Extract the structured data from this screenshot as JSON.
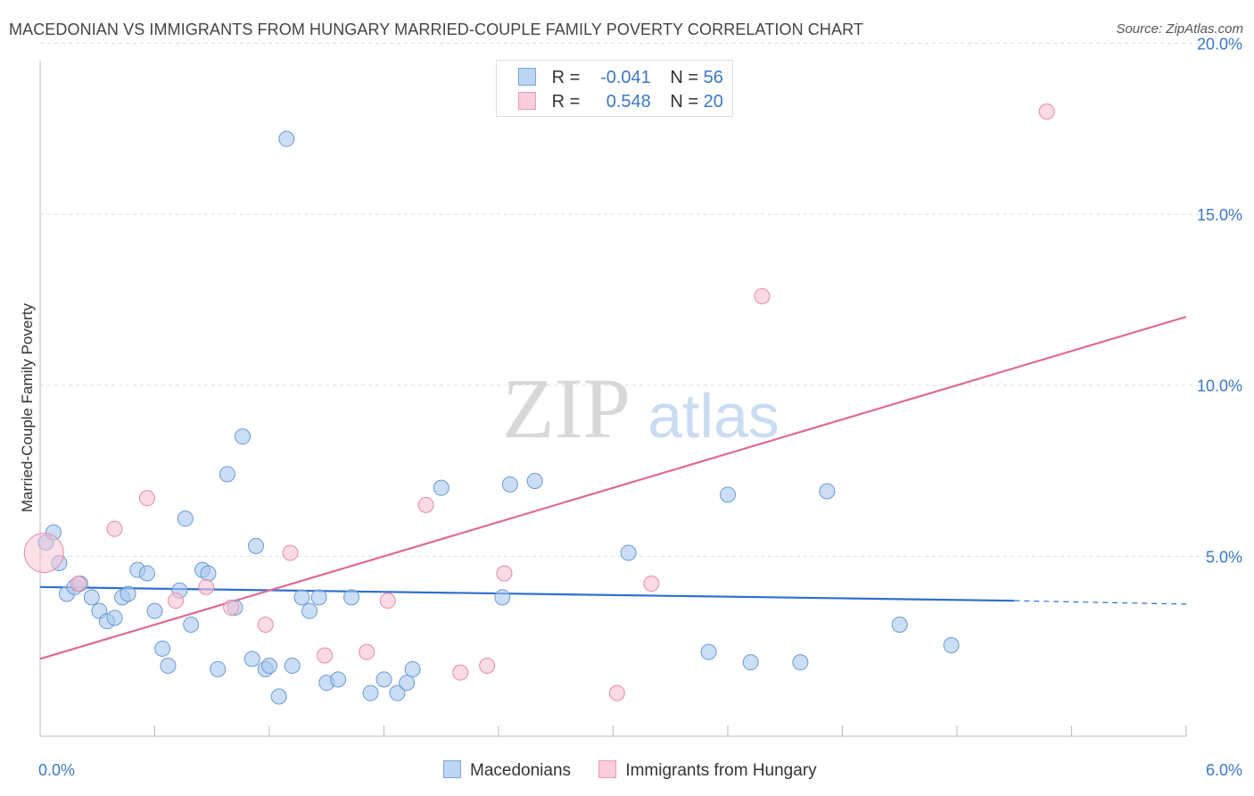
{
  "title": "MACEDONIAN VS IMMIGRANTS FROM HUNGARY MARRIED-COUPLE FAMILY POVERTY CORRELATION CHART",
  "source": "Source: ZipAtlas.com",
  "watermark": {
    "zip": "ZIP",
    "atlas": "atlas"
  },
  "colors": {
    "blue_fill": "#a9c8ee",
    "blue_stroke": "#6a9ad6",
    "blue_line": "#2f6fcf",
    "pink_fill": "#f7c1d2",
    "pink_stroke": "#e88aa8",
    "pink_line": "#e06a93",
    "tick_text": "#3b78c4"
  },
  "legend": {
    "rows": [
      {
        "r_label": "R =",
        "r_value": "-0.041",
        "n_label": "N =",
        "n_value": "56"
      },
      {
        "r_label": "R =",
        "r_value": "0.548",
        "n_label": "N =",
        "n_value": "20"
      }
    ]
  },
  "bottom_legend": {
    "series1": "Macedonians",
    "series2": "Immigrants from Hungary"
  },
  "chart_data": {
    "type": "scatter",
    "title": "MACEDONIAN VS IMMIGRANTS FROM HUNGARY MARRIED-COUPLE FAMILY POVERTY CORRELATION CHART",
    "xlabel": "",
    "ylabel": "Married-Couple Family Poverty",
    "xlim": [
      0,
      6
    ],
    "ylim": [
      0,
      20.5
    ],
    "x_tick_labels": [
      {
        "value": 0,
        "label": "0.0%"
      },
      {
        "value": 6,
        "label": "6.0%"
      }
    ],
    "y_tick_labels": [
      {
        "value": 5,
        "label": "5.0%"
      },
      {
        "value": 10,
        "label": "10.0%"
      },
      {
        "value": 15,
        "label": "15.0%"
      },
      {
        "value": 20,
        "label": "20.0%"
      }
    ],
    "series": [
      {
        "name": "Macedonians",
        "color": "#a9c8ee",
        "points": [
          [
            0.03,
            5.4
          ],
          [
            0.07,
            5.7
          ],
          [
            0.1,
            4.8
          ],
          [
            0.14,
            3.9
          ],
          [
            0.18,
            4.1
          ],
          [
            0.21,
            4.2
          ],
          [
            0.27,
            3.8
          ],
          [
            0.31,
            3.4
          ],
          [
            0.35,
            3.1
          ],
          [
            0.39,
            3.2
          ],
          [
            0.43,
            3.8
          ],
          [
            0.46,
            3.9
          ],
          [
            0.51,
            4.6
          ],
          [
            0.56,
            4.5
          ],
          [
            0.6,
            3.4
          ],
          [
            0.64,
            2.3
          ],
          [
            0.67,
            1.8
          ],
          [
            0.73,
            4.0
          ],
          [
            0.76,
            6.1
          ],
          [
            0.79,
            3.0
          ],
          [
            0.85,
            4.6
          ],
          [
            0.88,
            4.5
          ],
          [
            0.93,
            1.7
          ],
          [
            0.98,
            7.4
          ],
          [
            1.02,
            3.5
          ],
          [
            1.06,
            8.5
          ],
          [
            1.11,
            2.0
          ],
          [
            1.13,
            5.3
          ],
          [
            1.18,
            1.7
          ],
          [
            1.2,
            1.8
          ],
          [
            1.25,
            0.9
          ],
          [
            1.29,
            17.2
          ],
          [
            1.32,
            1.8
          ],
          [
            1.37,
            3.8
          ],
          [
            1.41,
            3.4
          ],
          [
            1.46,
            3.8
          ],
          [
            1.5,
            1.3
          ],
          [
            1.56,
            1.4
          ],
          [
            1.63,
            3.8
          ],
          [
            1.73,
            1.0
          ],
          [
            1.8,
            1.4
          ],
          [
            1.87,
            1.0
          ],
          [
            1.92,
            1.3
          ],
          [
            1.95,
            1.7
          ],
          [
            2.1,
            7.0
          ],
          [
            2.42,
            3.8
          ],
          [
            2.46,
            7.1
          ],
          [
            2.59,
            7.2
          ],
          [
            3.08,
            5.1
          ],
          [
            3.5,
            2.2
          ],
          [
            3.6,
            6.8
          ],
          [
            3.72,
            1.9
          ],
          [
            3.98,
            1.9
          ],
          [
            4.12,
            6.9
          ],
          [
            4.5,
            3.0
          ],
          [
            4.77,
            2.4
          ]
        ]
      },
      {
        "name": "Immigrants from Hungary",
        "color": "#f7c1d2",
        "points": [
          [
            0.02,
            5.1
          ],
          [
            0.2,
            4.2
          ],
          [
            0.39,
            5.8
          ],
          [
            0.56,
            6.7
          ],
          [
            0.71,
            3.7
          ],
          [
            0.87,
            4.1
          ],
          [
            1.0,
            3.5
          ],
          [
            1.18,
            3.0
          ],
          [
            1.31,
            5.1
          ],
          [
            1.49,
            2.1
          ],
          [
            1.71,
            2.2
          ],
          [
            1.82,
            3.7
          ],
          [
            2.02,
            6.5
          ],
          [
            2.2,
            1.6
          ],
          [
            2.34,
            1.8
          ],
          [
            2.43,
            4.5
          ],
          [
            3.02,
            1.0
          ],
          [
            3.2,
            4.2
          ],
          [
            3.78,
            12.6
          ],
          [
            5.27,
            18.0
          ]
        ]
      }
    ],
    "trend_lines": [
      {
        "series": "Macedonians",
        "x_start": 0,
        "y_start": 4.1,
        "x_end": 5.1,
        "y_end": 3.7,
        "x_dash_end": 6.0,
        "y_dash_end": 3.6
      },
      {
        "series": "Immigrants from Hungary",
        "x_start": 0,
        "y_start": 2.0,
        "x_end": 6.0,
        "y_end": 12.0
      }
    ],
    "grid": true,
    "legend_position": "top-center"
  }
}
